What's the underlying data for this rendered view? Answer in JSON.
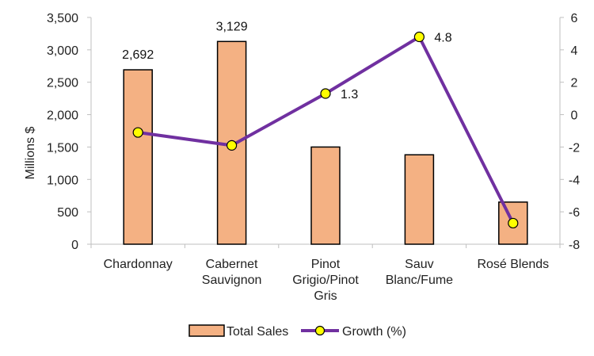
{
  "chart_data": {
    "type": "bar+line",
    "categories": [
      [
        "Chardonnay"
      ],
      [
        "Cabernet",
        "Sauvignon"
      ],
      [
        "Pinot",
        "Grigio/Pinot",
        "Gris"
      ],
      [
        "Sauv",
        "Blanc/Fume"
      ],
      [
        "Rosé Blends"
      ]
    ],
    "series": [
      {
        "name": "Total Sales",
        "type": "bar",
        "axis": "left",
        "values": [
          2692,
          3129,
          1500,
          1380,
          650
        ],
        "labels": [
          "2,692",
          "3,129",
          null,
          null,
          null
        ]
      },
      {
        "name": "Growth (%)",
        "type": "line",
        "axis": "right",
        "values": [
          -1.1,
          -1.9,
          1.3,
          4.8,
          -6.7
        ],
        "labels": [
          null,
          null,
          "1.3",
          "4.8",
          null
        ]
      }
    ],
    "ylabel": "Millions $",
    "ylim": [
      0,
      3500
    ],
    "yticks": [
      0,
      500,
      1000,
      1500,
      2000,
      2500,
      3000,
      3500
    ],
    "ytick_labels": [
      "0",
      "500",
      "1,000",
      "1,500",
      "2,000",
      "2,500",
      "3,000",
      "3,500"
    ],
    "y2lim": [
      -8,
      6
    ],
    "y2ticks": [
      -8,
      -6,
      -4,
      -2,
      0,
      2,
      4,
      6
    ],
    "y2tick_labels": [
      "-8",
      "-6",
      "-4",
      "-2",
      "0",
      "2",
      "4",
      "6"
    ],
    "grid": false,
    "legend": "bottom",
    "colors": {
      "bar_fill": "#f4b183",
      "bar_stroke": "#000000",
      "line": "#7030a0",
      "marker_fill": "#ffff00",
      "marker_stroke": "#000000"
    }
  }
}
